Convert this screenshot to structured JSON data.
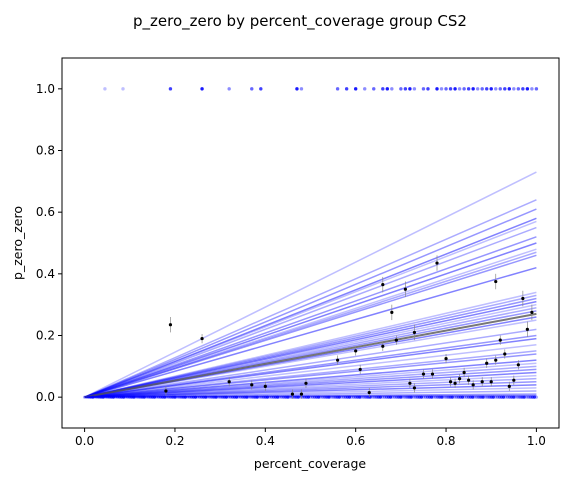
{
  "chart_data": {
    "type": "scatter",
    "title": "p_zero_zero by percent_coverage group CS2",
    "xlabel": "percent_coverage",
    "ylabel": "p_zero_zero",
    "xlim": [
      -0.05,
      1.05
    ],
    "ylim": [
      -0.1,
      1.1
    ],
    "xticks": [
      "0.0",
      "0.2",
      "0.4",
      "0.6",
      "0.8",
      "1.0"
    ],
    "yticks": [
      "0.0",
      "0.2",
      "0.4",
      "0.6",
      "0.8",
      "1.0"
    ],
    "grid": false,
    "legend": "none",
    "fit_line_color": "#0000ff",
    "mean_line_color": "#555555",
    "point_color": "#000000",
    "fit_line_slopes": [
      0.73,
      0.64,
      0.61,
      0.58,
      0.57,
      0.55,
      0.52,
      0.5,
      0.48,
      0.47,
      0.46,
      0.42,
      0.34,
      0.33,
      0.32,
      0.31,
      0.3,
      0.29,
      0.28,
      0.26,
      0.25,
      0.22,
      0.2,
      0.19,
      0.17,
      0.15,
      0.14,
      0.12,
      0.11,
      0.1,
      0.09,
      0.08,
      0.07,
      0.06,
      0.05,
      0.04,
      0.03,
      0.02,
      0.01,
      0.005
    ],
    "mean_line_slope": 0.27,
    "group_means": [
      {
        "x": 0.19,
        "y": 0.235
      },
      {
        "x": 0.26,
        "y": 0.19
      },
      {
        "x": 0.18,
        "y": 0.02
      },
      {
        "x": 0.32,
        "y": 0.05
      },
      {
        "x": 0.37,
        "y": 0.04
      },
      {
        "x": 0.4,
        "y": 0.035
      },
      {
        "x": 0.46,
        "y": 0.01
      },
      {
        "x": 0.48,
        "y": 0.01
      },
      {
        "x": 0.49,
        "y": 0.045
      },
      {
        "x": 0.56,
        "y": 0.12
      },
      {
        "x": 0.6,
        "y": 0.15
      },
      {
        "x": 0.61,
        "y": 0.09
      },
      {
        "x": 0.63,
        "y": 0.015
      },
      {
        "x": 0.66,
        "y": 0.365
      },
      {
        "x": 0.66,
        "y": 0.165
      },
      {
        "x": 0.68,
        "y": 0.275
      },
      {
        "x": 0.69,
        "y": 0.185
      },
      {
        "x": 0.71,
        "y": 0.35
      },
      {
        "x": 0.72,
        "y": 0.045
      },
      {
        "x": 0.73,
        "y": 0.03
      },
      {
        "x": 0.73,
        "y": 0.21
      },
      {
        "x": 0.75,
        "y": 0.075
      },
      {
        "x": 0.77,
        "y": 0.075
      },
      {
        "x": 0.78,
        "y": 0.435
      },
      {
        "x": 0.8,
        "y": 0.125
      },
      {
        "x": 0.81,
        "y": 0.05
      },
      {
        "x": 0.82,
        "y": 0.045
      },
      {
        "x": 0.83,
        "y": 0.06
      },
      {
        "x": 0.84,
        "y": 0.08
      },
      {
        "x": 0.85,
        "y": 0.055
      },
      {
        "x": 0.86,
        "y": 0.04
      },
      {
        "x": 0.88,
        "y": 0.05
      },
      {
        "x": 0.89,
        "y": 0.11
      },
      {
        "x": 0.9,
        "y": 0.05
      },
      {
        "x": 0.91,
        "y": 0.12
      },
      {
        "x": 0.91,
        "y": 0.375
      },
      {
        "x": 0.92,
        "y": 0.185
      },
      {
        "x": 0.93,
        "y": 0.14
      },
      {
        "x": 0.94,
        "y": 0.035
      },
      {
        "x": 0.95,
        "y": 0.055
      },
      {
        "x": 0.96,
        "y": 0.105
      },
      {
        "x": 0.97,
        "y": 0.32
      },
      {
        "x": 0.98,
        "y": 0.22
      },
      {
        "x": 0.99,
        "y": 0.275
      }
    ],
    "raw_y1_x": [
      0.045,
      0.085,
      0.19,
      0.26,
      0.32,
      0.37,
      0.39,
      0.47,
      0.48,
      0.56,
      0.58,
      0.6,
      0.62,
      0.64,
      0.66,
      0.67,
      0.68,
      0.7,
      0.71,
      0.72,
      0.73,
      0.75,
      0.76,
      0.78,
      0.79,
      0.8,
      0.81,
      0.82,
      0.83,
      0.84,
      0.85,
      0.86,
      0.87,
      0.88,
      0.89,
      0.9,
      0.91,
      0.92,
      0.93,
      0.94,
      0.95,
      0.96,
      0.97,
      0.98,
      0.99,
      1.0
    ]
  }
}
